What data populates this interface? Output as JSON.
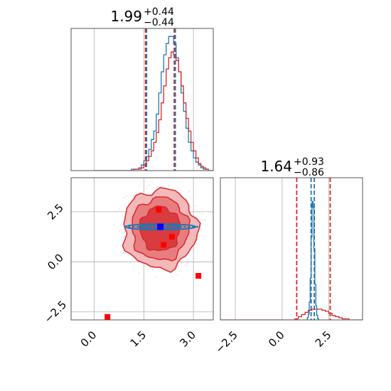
{
  "colors": {
    "red": "#d62728",
    "blue": "#1f77b4",
    "contour_fill_light": "#f4b6b7",
    "contour_fill_mid": "#e87a7c",
    "contour_fill_dark": "#d9383b",
    "grid": "#b0b0b0",
    "marker_blue": "#0000ff",
    "marker_red": "#ff0000"
  },
  "chart_data": [
    {
      "panel": "marginal-x",
      "type": "histogram",
      "title_value": "1.99",
      "title_plus": "+0.44",
      "title_minus": "−0.44",
      "xlim": [
        -0.7,
        3.6
      ],
      "quantiles": {
        "blue": [
          1.55,
          2.42
        ],
        "red": [
          1.55,
          2.42
        ]
      },
      "series": [
        {
          "color": "blue",
          "bin_edges_range": [
            0.0,
            3.6
          ],
          "counts": [
            0,
            0,
            0,
            0,
            0,
            0,
            0,
            0,
            0,
            0,
            0,
            0,
            0,
            0,
            0,
            1,
            1,
            1,
            2,
            4,
            7,
            10,
            15,
            22,
            28,
            40,
            55,
            70,
            82,
            90,
            95,
            95,
            90,
            80,
            70,
            55,
            42,
            30,
            20,
            14,
            9,
            6,
            4,
            2,
            1,
            1,
            0,
            0
          ]
        },
        {
          "color": "red",
          "bin_edges_range": [
            0.0,
            3.6
          ],
          "counts": [
            0,
            0,
            0,
            0,
            0,
            0,
            0,
            0,
            0,
            0,
            0,
            0,
            0,
            0,
            0,
            0,
            1,
            1,
            1,
            2,
            4,
            7,
            10,
            14,
            20,
            27,
            36,
            48,
            60,
            72,
            80,
            84,
            82,
            78,
            70,
            60,
            48,
            37,
            28,
            20,
            14,
            9,
            5,
            3,
            2,
            1,
            0,
            0
          ]
        }
      ]
    },
    {
      "panel": "joint",
      "type": "scatter",
      "xlim": [
        -0.7,
        3.6
      ],
      "ylim": [
        -2.9,
        4.2
      ],
      "xticks": [
        "0.0",
        "1.5",
        "3.0"
      ],
      "xtick_values": [
        0.0,
        1.5,
        3.0
      ],
      "yticks": [
        "2.5",
        "0.0",
        "−2.5"
      ],
      "ytick_values": [
        2.5,
        0.0,
        -2.5
      ],
      "red_points": [
        [
          1.95,
          2.6
        ],
        [
          2.35,
          1.25
        ],
        [
          2.1,
          0.85
        ],
        [
          3.15,
          -0.7
        ],
        [
          0.4,
          -2.75
        ]
      ],
      "blue_point": [
        2.0,
        1.75
      ],
      "blue_band": {
        "x_range": [
          0.9,
          3.15
        ],
        "y": 1.75
      },
      "contour_center": [
        1.99,
        1.64
      ]
    },
    {
      "panel": "marginal-y",
      "type": "histogram",
      "title_value": "1.64",
      "title_plus": "+0.93",
      "title_minus": "−0.86",
      "xlim": [
        -3.3,
        4.3
      ],
      "xticks": [
        "−2.5",
        "0.0",
        "2.5"
      ],
      "xtick_values": [
        -2.5,
        0.0,
        2.5
      ],
      "quantiles": {
        "blue": [
          1.55,
          1.72
        ],
        "red": [
          0.78,
          2.57
        ]
      },
      "series": [
        {
          "color": "blue",
          "bin_edges_range": [
            1.3,
            2.0
          ],
          "counts": [
            0,
            2,
            5,
            15,
            35,
            70,
            100,
            95,
            60,
            30,
            12,
            4,
            1,
            0
          ]
        },
        {
          "color": "red",
          "bin_edges_range": [
            -3.3,
            4.3
          ],
          "counts": [
            0,
            0,
            0,
            0,
            0,
            0,
            0,
            0,
            0,
            0,
            0,
            0,
            0,
            0,
            0,
            0,
            0,
            0,
            0,
            0,
            0,
            0,
            1,
            3,
            5,
            7,
            9,
            10,
            10,
            10,
            9,
            8,
            6,
            4,
            3,
            2,
            1,
            1,
            0,
            0,
            0,
            0
          ]
        }
      ]
    }
  ]
}
